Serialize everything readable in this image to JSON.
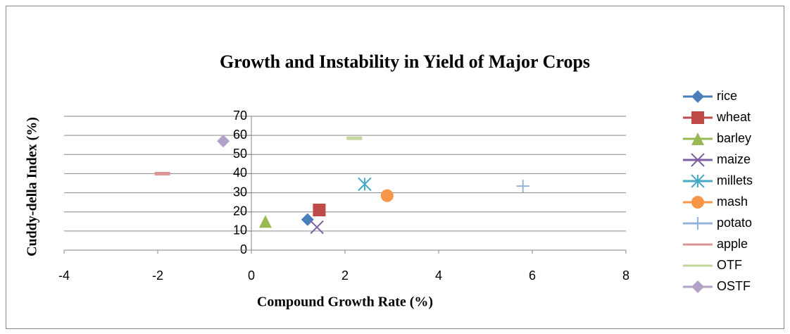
{
  "chart_data": {
    "type": "scatter",
    "title": "Growth and Instability in Yield of Major Crops",
    "x_label": "Compound Growth Rate (%)",
    "y_label": "Cuddy-della Index (%)",
    "xlim": [
      -4,
      8
    ],
    "xticks": [
      -4,
      -2,
      0,
      2,
      4,
      6,
      8
    ],
    "ylim": [
      0,
      70
    ],
    "yticks": [
      0,
      10,
      20,
      30,
      40,
      50,
      60,
      70
    ],
    "grid": true,
    "legend": "right",
    "series": [
      {
        "name": "rice",
        "color": "#4a7ebb",
        "marker": "diamond",
        "x": [
          1.2
        ],
        "values": [
          16
        ]
      },
      {
        "name": "wheat",
        "color": "#be4b48",
        "marker": "square",
        "x": [
          1.45
        ],
        "values": [
          21
        ]
      },
      {
        "name": "barley",
        "color": "#98b954",
        "marker": "triangle",
        "x": [
          0.3
        ],
        "values": [
          15
        ]
      },
      {
        "name": "maize",
        "color": "#7d60a0",
        "marker": "x",
        "x": [
          1.4
        ],
        "values": [
          12
        ]
      },
      {
        "name": "millets",
        "color": "#46aac5",
        "marker": "star",
        "x": [
          2.42
        ],
        "values": [
          34.5
        ]
      },
      {
        "name": "mash",
        "color": "#f79646",
        "marker": "circle",
        "x": [
          2.9
        ],
        "values": [
          28.5
        ]
      },
      {
        "name": "potato",
        "color": "#95b3d7",
        "marker": "plus",
        "x": [
          5.8
        ],
        "values": [
          33.5
        ]
      },
      {
        "name": "apple",
        "color": "#d99694",
        "marker": "dash",
        "x": [
          -1.9
        ],
        "values": [
          40
        ]
      },
      {
        "name": "OTF",
        "color": "#c3d69b",
        "marker": "dash",
        "x": [
          2.2
        ],
        "values": [
          58.5
        ]
      },
      {
        "name": "OSTF",
        "color": "#b3a2c7",
        "marker": "diamond",
        "x": [
          -0.6
        ],
        "values": [
          57
        ]
      }
    ]
  }
}
